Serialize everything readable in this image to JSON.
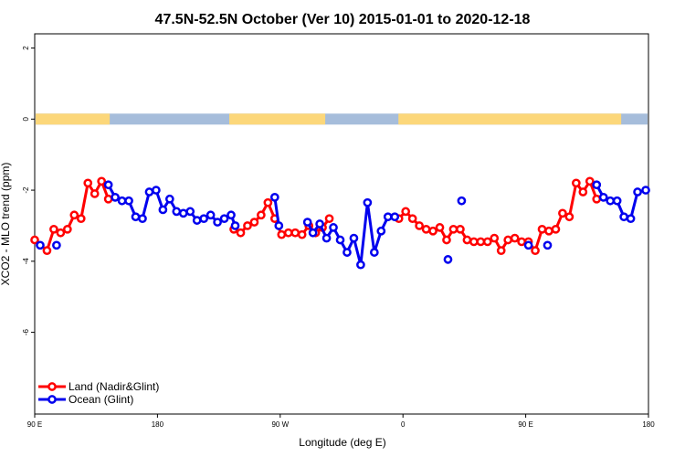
{
  "chart_data": {
    "type": "line",
    "title": "47.5N-52.5N October (Ver 10)   2015-01-01 to 2020-12-18",
    "xlabel": "Longitude (deg E)",
    "ylabel": "XCO2 - MLO trend (ppm)",
    "xlim": [
      90,
      540
    ],
    "ylim": [
      -8,
      2
    ],
    "x_ticks": [
      {
        "value": 90,
        "label": "90 E"
      },
      {
        "value": 180,
        "label": "180"
      },
      {
        "value": 270,
        "label": "90 W"
      },
      {
        "value": 360,
        "label": "0"
      },
      {
        "value": 450,
        "label": "90 E"
      },
      {
        "value": 540,
        "label": "180"
      }
    ],
    "y_ticks": [
      {
        "value": 2,
        "label": "2"
      },
      {
        "value": 0,
        "label": "0"
      },
      {
        "value": -2,
        "label": "-2"
      },
      {
        "value": -4,
        "label": "-4"
      },
      {
        "value": -6,
        "label": "-6"
      }
    ],
    "grid": false,
    "legend_position": "bottom-left",
    "land_ocean_band": {
      "y_center": 0,
      "land_color": "#fcd77a",
      "ocean_color": "#a6bddb",
      "land_ranges": [
        [
          90,
          145
        ],
        [
          232,
          303
        ],
        [
          356,
          520
        ]
      ]
    },
    "series": [
      {
        "name": "Land (Nadir&Glint)",
        "color": "#ff0000",
        "segments": [
          [
            [
              90,
              -3.4
            ],
            [
              99,
              -3.7
            ],
            [
              104,
              -3.1
            ],
            [
              109,
              -3.2
            ],
            [
              114,
              -3.1
            ],
            [
              119,
              -2.7
            ],
            [
              124,
              -2.8
            ],
            [
              129,
              -1.8
            ],
            [
              134,
              -2.1
            ],
            [
              139,
              -1.75
            ],
            [
              144,
              -2.25
            ]
          ],
          [
            [
              236,
              -3.1
            ],
            [
              241,
              -3.2
            ],
            [
              246,
              -3.0
            ],
            [
              251,
              -2.9
            ],
            [
              256,
              -2.7
            ],
            [
              261,
              -2.35
            ],
            [
              266,
              -2.8
            ],
            [
              271,
              -3.25
            ],
            [
              276,
              -3.2
            ],
            [
              281,
              -3.2
            ],
            [
              286,
              -3.25
            ],
            [
              291,
              -3.0
            ],
            [
              296,
              -3.2
            ],
            [
              301,
              -3.05
            ],
            [
              306,
              -2.8
            ]
          ],
          [
            [
              357,
              -2.8
            ],
            [
              362,
              -2.6
            ],
            [
              367,
              -2.8
            ],
            [
              372,
              -3.0
            ],
            [
              377,
              -3.1
            ],
            [
              382,
              -3.15
            ],
            [
              387,
              -3.05
            ],
            [
              392,
              -3.4
            ],
            [
              397,
              -3.1
            ],
            [
              402,
              -3.1
            ],
            [
              407,
              -3.4
            ],
            [
              412,
              -3.45
            ],
            [
              417,
              -3.45
            ],
            [
              422,
              -3.45
            ],
            [
              427,
              -3.35
            ],
            [
              432,
              -3.7
            ],
            [
              437,
              -3.4
            ],
            [
              442,
              -3.35
            ],
            [
              447,
              -3.45
            ],
            [
              452,
              -3.45
            ],
            [
              457,
              -3.7
            ],
            [
              462,
              -3.1
            ],
            [
              467,
              -3.15
            ],
            [
              472,
              -3.1
            ],
            [
              477,
              -2.65
            ],
            [
              482,
              -2.75
            ],
            [
              487,
              -1.8
            ],
            [
              492,
              -2.05
            ],
            [
              497,
              -1.75
            ],
            [
              502,
              -2.25
            ]
          ]
        ]
      },
      {
        "name": "Ocean (Glint)",
        "color": "#0000ee",
        "segments": [
          [
            [
              94,
              -3.55
            ]
          ],
          [
            [
              106,
              -3.55
            ]
          ],
          [
            [
              144,
              -1.85
            ],
            [
              149,
              -2.2
            ],
            [
              154,
              -2.3
            ],
            [
              159,
              -2.3
            ],
            [
              164,
              -2.75
            ],
            [
              169,
              -2.8
            ],
            [
              174,
              -2.05
            ],
            [
              179,
              -2.0
            ],
            [
              184,
              -2.55
            ],
            [
              189,
              -2.25
            ],
            [
              194,
              -2.6
            ],
            [
              199,
              -2.65
            ],
            [
              204,
              -2.6
            ],
            [
              209,
              -2.85
            ],
            [
              214,
              -2.8
            ],
            [
              219,
              -2.7
            ],
            [
              224,
              -2.9
            ],
            [
              229,
              -2.8
            ],
            [
              234,
              -2.7
            ],
            [
              237,
              -3.0
            ]
          ],
          [
            [
              266,
              -2.2
            ],
            [
              269,
              -3.0
            ]
          ],
          [
            [
              290,
              -2.9
            ],
            [
              294,
              -3.2
            ],
            [
              299,
              -2.95
            ],
            [
              304,
              -3.35
            ],
            [
              309,
              -3.05
            ],
            [
              314,
              -3.4
            ],
            [
              319,
              -3.75
            ],
            [
              324,
              -3.35
            ],
            [
              329,
              -4.1
            ],
            [
              334,
              -2.35
            ],
            [
              339,
              -3.75
            ],
            [
              344,
              -3.15
            ],
            [
              349,
              -2.75
            ],
            [
              354,
              -2.75
            ]
          ],
          [
            [
              393,
              -3.95
            ]
          ],
          [
            [
              403,
              -2.3
            ]
          ],
          [
            [
              452,
              -3.55
            ]
          ],
          [
            [
              466,
              -3.55
            ]
          ],
          [
            [
              502,
              -1.85
            ],
            [
              507,
              -2.2
            ],
            [
              512,
              -2.3
            ],
            [
              517,
              -2.3
            ],
            [
              522,
              -2.75
            ],
            [
              527,
              -2.8
            ],
            [
              532,
              -2.05
            ],
            [
              538,
              -2.0
            ]
          ]
        ]
      }
    ]
  }
}
